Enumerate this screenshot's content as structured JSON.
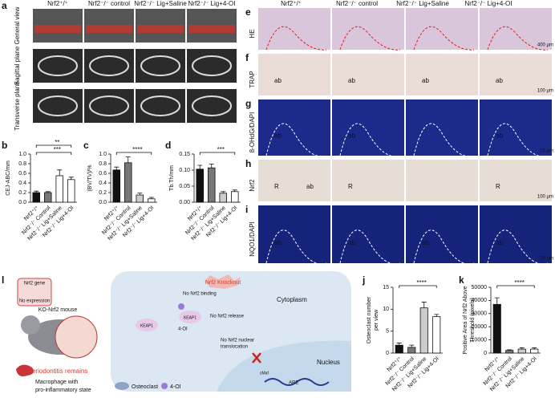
{
  "panel_a": {
    "label": "a",
    "columns": [
      "Nrf2⁺/⁺",
      "Nrf2⁻/⁻ control",
      "Nrf2⁻/⁻ Lig+Saline",
      "Nrf2⁻/⁻ Lig+4-OI"
    ],
    "rows": [
      "General view",
      "Sagittal plane",
      "Transverse plane"
    ]
  },
  "panel_e_i": {
    "columns": [
      "Nrf2⁺/⁺",
      "Nrf2⁻/⁻ control",
      "Nrf2⁻/⁻ Lig+Saline",
      "Nrf2⁻/⁻ Lig+4-OI"
    ],
    "rows": [
      {
        "label": "e",
        "stain": "HE",
        "scale": "400 μm",
        "tags": [
          [],
          [],
          [],
          []
        ]
      },
      {
        "label": "f",
        "stain": "TRAP",
        "scale": "100 μm",
        "tags": [
          [
            "ab"
          ],
          [
            "ab"
          ],
          [
            "ab"
          ],
          [
            "ab"
          ]
        ]
      },
      {
        "label": "g",
        "stain": "8-OHdG/DAPI",
        "scale": "25 μm",
        "tags": [
          [
            "ab"
          ],
          [
            "ab"
          ],
          [],
          [
            "ab"
          ]
        ]
      },
      {
        "label": "h",
        "stain": "Nrf2",
        "scale": "100 μm",
        "tags": [
          [
            "R",
            "ab"
          ],
          [
            "R"
          ],
          [],
          [
            "R"
          ]
        ]
      },
      {
        "label": "i",
        "stain": "NQO1/DAPI",
        "scale": "25 μm",
        "tags": [
          [
            "ab"
          ],
          [
            "ab"
          ],
          [
            "ab"
          ],
          [
            "ab"
          ]
        ]
      }
    ]
  },
  "chart_data": [
    {
      "type": "bar",
      "label": "b",
      "ylabel": [
        "CEJ-ABC/mm"
      ],
      "categories": [
        "Nrf2⁺/⁺",
        "Nrf2⁻/⁻ Control",
        "Nrf2⁻/⁻ Lig+Saline",
        "Nrf2⁻/⁻ Lig+4-OI"
      ],
      "values": [
        0.2,
        0.2,
        0.55,
        0.47
      ],
      "errors": [
        0.03,
        0.02,
        0.12,
        0.05
      ],
      "colors": [
        "#111111",
        "#777777",
        "#ffffff",
        "#ffffff"
      ],
      "ylim": [
        0,
        1.0
      ],
      "yticks": [
        {
          "value": 0,
          "label": "0.0"
        },
        {
          "value": 0.2,
          "label": "0.2"
        },
        {
          "value": 0.4,
          "label": "0.4"
        },
        {
          "value": 0.6,
          "label": "0.6"
        },
        {
          "value": 0.8,
          "label": "0.8"
        },
        {
          "value": 1.0,
          "label": "1.0"
        }
      ],
      "annotations": [
        "***",
        "**"
      ]
    },
    {
      "type": "bar",
      "label": "c",
      "ylabel": [
        "(BV/TV)/%"
      ],
      "categories": [
        "Nrf2⁺/⁺",
        "Nrf2⁻/⁻ Control",
        "Nrf2⁻/⁻ Lig+Saline",
        "Nrf2⁻/⁻ Lig+4-OI"
      ],
      "values": [
        0.67,
        0.82,
        0.15,
        0.07
      ],
      "errors": [
        0.06,
        0.12,
        0.04,
        0.03
      ],
      "colors": [
        "#111111",
        "#777777",
        "#cccccc",
        "#ffffff"
      ],
      "ylim": [
        0,
        1.0
      ],
      "yticks": [
        {
          "value": 0,
          "label": "0.0"
        },
        {
          "value": 0.2,
          "label": "0.2"
        },
        {
          "value": 0.4,
          "label": "0.4"
        },
        {
          "value": 0.6,
          "label": "0.6"
        },
        {
          "value": 0.8,
          "label": "0.8"
        },
        {
          "value": 1.0,
          "label": "1.0"
        }
      ],
      "annotations": [
        "****"
      ]
    },
    {
      "type": "bar",
      "label": "d",
      "ylabel": [
        "Tb.Th/mm"
      ],
      "categories": [
        "Nrf2⁺/⁺",
        "Nrf2⁻/⁻ Control",
        "Nrf2⁻/⁻ Lig+Saline",
        "Nrf2⁻/⁻ Lig+4-OI"
      ],
      "values": [
        0.103,
        0.107,
        0.028,
        0.033
      ],
      "errors": [
        0.012,
        0.012,
        0.005,
        0.005
      ],
      "colors": [
        "#111111",
        "#777777",
        "#cccccc",
        "#ffffff"
      ],
      "ylim": [
        0,
        0.15
      ],
      "yticks": [
        {
          "value": 0,
          "label": "0.00"
        },
        {
          "value": 0.05,
          "label": "0.05"
        },
        {
          "value": 0.1,
          "label": "0.10"
        },
        {
          "value": 0.15,
          "label": "0.15"
        }
      ],
      "annotations": [
        "***"
      ]
    },
    {
      "type": "bar",
      "label": "j",
      "ylabel": [
        "Osteoclast number",
        "per view"
      ],
      "categories": [
        "Nrf2⁺/⁺",
        "Nrf2⁻/⁻ Control",
        "Nrf2⁻/⁻ Lig+Saline",
        "Nrf2⁻/⁻ Lig+4-OI"
      ],
      "values": [
        1.8,
        1.3,
        10.3,
        8.3
      ],
      "errors": [
        0.5,
        0.5,
        1.3,
        0.5
      ],
      "colors": [
        "#111111",
        "#777777",
        "#cccccc",
        "#ffffff"
      ],
      "ylim": [
        0,
        15
      ],
      "yticks": [
        0,
        5,
        10,
        15
      ],
      "annotations": [
        "****"
      ]
    },
    {
      "type": "bar",
      "label": "k",
      "ylabel": [
        "Positive Area of Nrf2 Above",
        "Threshold (pixels)"
      ],
      "categories": [
        "Nrf2⁺/⁺",
        "Nrf2⁻/⁻ Control",
        "Nrf2⁻/⁻ Lig+Saline",
        "Nrf2⁻/⁻ Lig+4-OI"
      ],
      "values": [
        37000,
        2000,
        3000,
        3000
      ],
      "errors": [
        5000,
        500,
        1000,
        1000
      ],
      "colors": [
        "#111111",
        "#777777",
        "#cccccc",
        "#ffffff"
      ],
      "ylim": [
        0,
        50000
      ],
      "yticks": [
        0,
        10000,
        20000,
        30000,
        40000,
        50000
      ],
      "annotations": [
        "****"
      ]
    }
  ],
  "panel_l": {
    "label": "l",
    "gene": "Nrf2 gene",
    "no_expression": "No expression",
    "mouse": "KO-Nrf2 mouse",
    "outcome": "Periodontitis remains",
    "knockout": "Nrf2 Knockout",
    "no_binding": "No Nrf2 binding",
    "cytoplasm": "Cytoplasm",
    "no_release": "No Nrf2 release",
    "drug": "4-OI",
    "keap1": "KEAP1",
    "no_translocation": [
      "No Nrf2 nuclear",
      "translocation"
    ],
    "nucleus": "Nucleus",
    "smaf": "sMaf",
    "are": "ARE",
    "legend": [
      [
        "Macrophage with",
        "pro-inflammatory state"
      ],
      [
        "Osteoclast"
      ],
      [
        "4-OI"
      ]
    ]
  }
}
